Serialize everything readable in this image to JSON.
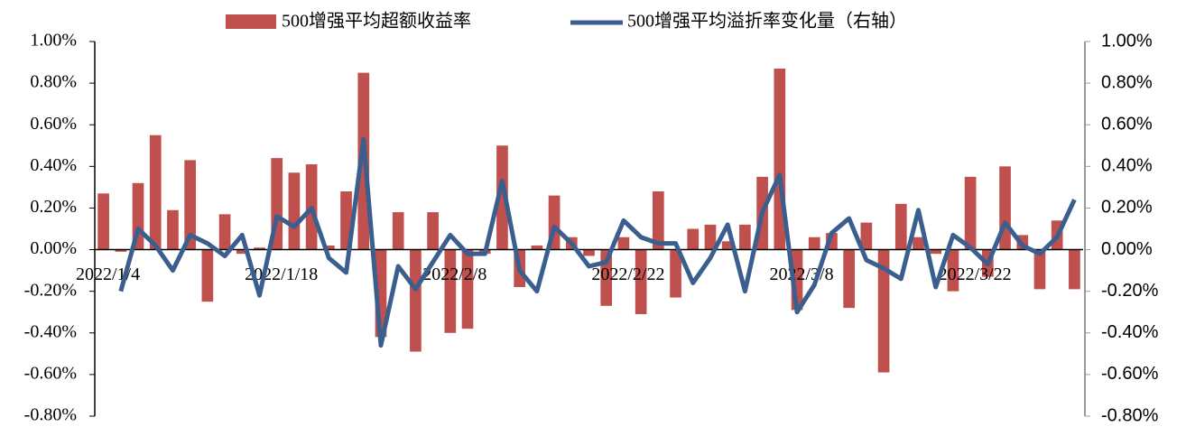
{
  "chart_data": {
    "type": "bar_line",
    "categories": [
      "2022/1/4",
      null,
      null,
      null,
      null,
      null,
      null,
      null,
      null,
      null,
      "2022/1/18",
      null,
      null,
      null,
      null,
      null,
      null,
      null,
      null,
      null,
      "2022/2/8",
      null,
      null,
      null,
      null,
      null,
      null,
      null,
      null,
      null,
      "2022/2/22",
      null,
      null,
      null,
      null,
      null,
      null,
      null,
      null,
      null,
      "2022/3/8",
      null,
      null,
      null,
      null,
      null,
      null,
      null,
      null,
      null,
      "2022/3/22",
      null,
      null,
      null,
      null,
      null,
      null
    ],
    "series": [
      {
        "name": "500增强平均超额收益率",
        "type": "bar",
        "color": "#c0504d",
        "values": [
          0.27,
          -0.01,
          0.32,
          0.55,
          0.19,
          0.43,
          -0.25,
          0.17,
          -0.02,
          0.01,
          0.44,
          0.37,
          0.41,
          0.02,
          0.28,
          0.85,
          -0.42,
          0.18,
          -0.49,
          0.18,
          -0.4,
          -0.38,
          -0.02,
          0.5,
          -0.18,
          0.02,
          0.26,
          0.06,
          -0.03,
          -0.27,
          0.06,
          -0.31,
          0.28,
          -0.23,
          0.1,
          0.12,
          0.04,
          0.12,
          0.35,
          0.87,
          -0.29,
          0.06,
          0.08,
          -0.28,
          0.13,
          -0.59,
          0.22,
          0.06,
          -0.02,
          -0.2,
          0.35,
          -0.13,
          0.4,
          0.07,
          -0.19,
          0.14,
          -0.19
        ]
      },
      {
        "name": "500增强平均溢折率变化量（右轴）",
        "type": "line",
        "axis": "y2",
        "color": "#3a5f8f",
        "values": [
          null,
          -0.2,
          0.1,
          0.02,
          -0.1,
          0.07,
          0.03,
          -0.03,
          0.07,
          -0.22,
          0.16,
          0.11,
          0.2,
          -0.04,
          -0.11,
          0.53,
          -0.46,
          -0.08,
          -0.19,
          -0.06,
          0.07,
          -0.02,
          -0.02,
          0.33,
          -0.1,
          -0.2,
          0.11,
          0.03,
          -0.08,
          -0.06,
          0.14,
          0.06,
          0.03,
          0.03,
          -0.16,
          -0.04,
          0.12,
          -0.2,
          0.18,
          0.36,
          -0.3,
          -0.17,
          0.08,
          0.15,
          -0.05,
          -0.09,
          -0.14,
          0.19,
          -0.18,
          0.07,
          0.01,
          -0.07,
          0.13,
          0.02,
          -0.02,
          0.06,
          0.24
        ]
      }
    ],
    "ylim": [
      -0.8,
      1.0
    ],
    "yticks": [
      {
        "value": -0.8,
        "label": "-0.80%"
      },
      {
        "value": -0.6,
        "label": "-0.60%"
      },
      {
        "value": -0.4,
        "label": "-0.40%"
      },
      {
        "value": -0.2,
        "label": "-0.20%"
      },
      {
        "value": 0,
        "label": "0.00%"
      },
      {
        "value": 0.2,
        "label": "0.20%"
      },
      {
        "value": 0.4,
        "label": "0.40%"
      },
      {
        "value": 0.6,
        "label": "0.60%"
      },
      {
        "value": 0.8,
        "label": "0.80%"
      },
      {
        "value": 1.0,
        "label": "1.00%"
      }
    ],
    "y2lim": [
      -0.8,
      1.0
    ],
    "y2ticks": [
      {
        "value": -0.8,
        "label": "-0.80%"
      },
      {
        "value": -0.6,
        "label": "-0.60%"
      },
      {
        "value": -0.4,
        "label": "-0.40%"
      },
      {
        "value": -0.2,
        "label": "-0.20%"
      },
      {
        "value": 0,
        "label": "0.00%"
      },
      {
        "value": 0.2,
        "label": "0.20%"
      },
      {
        "value": 0.4,
        "label": "0.40%"
      },
      {
        "value": 0.6,
        "label": "0.60%"
      },
      {
        "value": 0.8,
        "label": "0.80%"
      },
      {
        "value": 1.0,
        "label": "1.00%"
      }
    ]
  }
}
